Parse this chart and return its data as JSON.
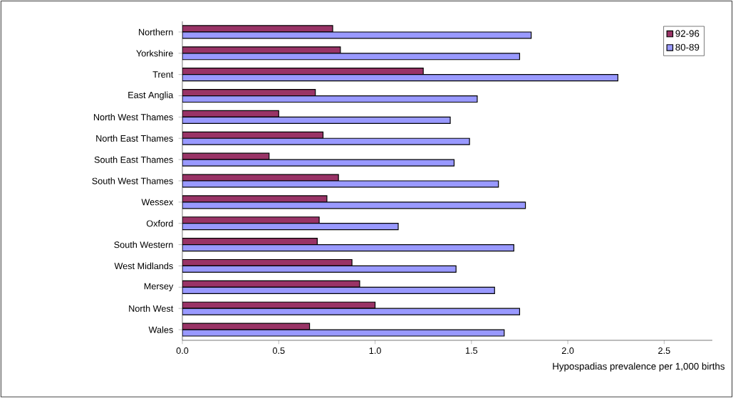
{
  "chart_data": {
    "type": "bar",
    "orientation": "horizontal",
    "xlabel": "Hypospadias prevalence per 1,000 births",
    "categories": [
      "Northern",
      "Yorkshire",
      "Trent",
      "East Anglia",
      "North West Thames",
      "North East Thames",
      "South East Thames",
      "South West Thames",
      "Wessex",
      "Oxford",
      "South Western",
      "West Midlands",
      "Mersey",
      "North West",
      "Wales"
    ],
    "series": [
      {
        "name": "92-96",
        "color": "#993366",
        "values": [
          0.78,
          0.82,
          1.25,
          0.69,
          0.5,
          0.73,
          0.45,
          0.81,
          0.75,
          0.71,
          0.7,
          0.88,
          0.92,
          1.0,
          0.66
        ]
      },
      {
        "name": "80-89",
        "color": "#9999ff",
        "values": [
          1.81,
          1.75,
          2.26,
          1.53,
          1.39,
          1.49,
          1.41,
          1.64,
          1.78,
          1.12,
          1.72,
          1.42,
          1.62,
          1.75,
          1.67
        ]
      }
    ],
    "xlim": [
      0,
      2.75
    ],
    "xticks": [
      {
        "value": 0,
        "label": "0.0"
      },
      {
        "value": 0.5,
        "label": "0.5"
      },
      {
        "value": 1,
        "label": "1.0"
      },
      {
        "value": 1.5,
        "label": "1.5"
      },
      {
        "value": 2,
        "label": "2.0"
      },
      {
        "value": 2.5,
        "label": "2.5"
      }
    ],
    "legend": "top right"
  }
}
